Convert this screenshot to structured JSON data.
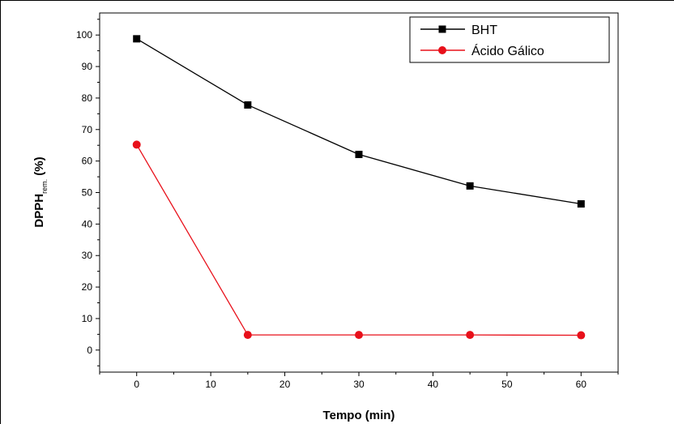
{
  "chart_data": {
    "type": "line",
    "title": "",
    "xlabel": "Tempo (min)",
    "ylabel": {
      "main": "DPPH",
      "subscript": "rem.",
      "suffix": " (%)"
    },
    "xlim": [
      -5,
      65
    ],
    "ylim": [
      -7,
      107
    ],
    "x_ticks": [
      0,
      10,
      20,
      30,
      40,
      50,
      60
    ],
    "y_ticks": [
      0,
      10,
      20,
      30,
      40,
      50,
      60,
      70,
      80,
      90,
      100
    ],
    "x": [
      0,
      15,
      30,
      45,
      60
    ],
    "series": [
      {
        "name": "BHT",
        "values": [
          98.8,
          77.8,
          62.1,
          52.1,
          46.4
        ],
        "color": "#000000",
        "marker": "square"
      },
      {
        "name": "Ácido Gálico",
        "values": [
          65.2,
          4.8,
          4.8,
          4.8,
          4.7
        ],
        "color": "#e8101a",
        "marker": "circle"
      }
    ],
    "legend_position": "top-right",
    "grid": false
  }
}
